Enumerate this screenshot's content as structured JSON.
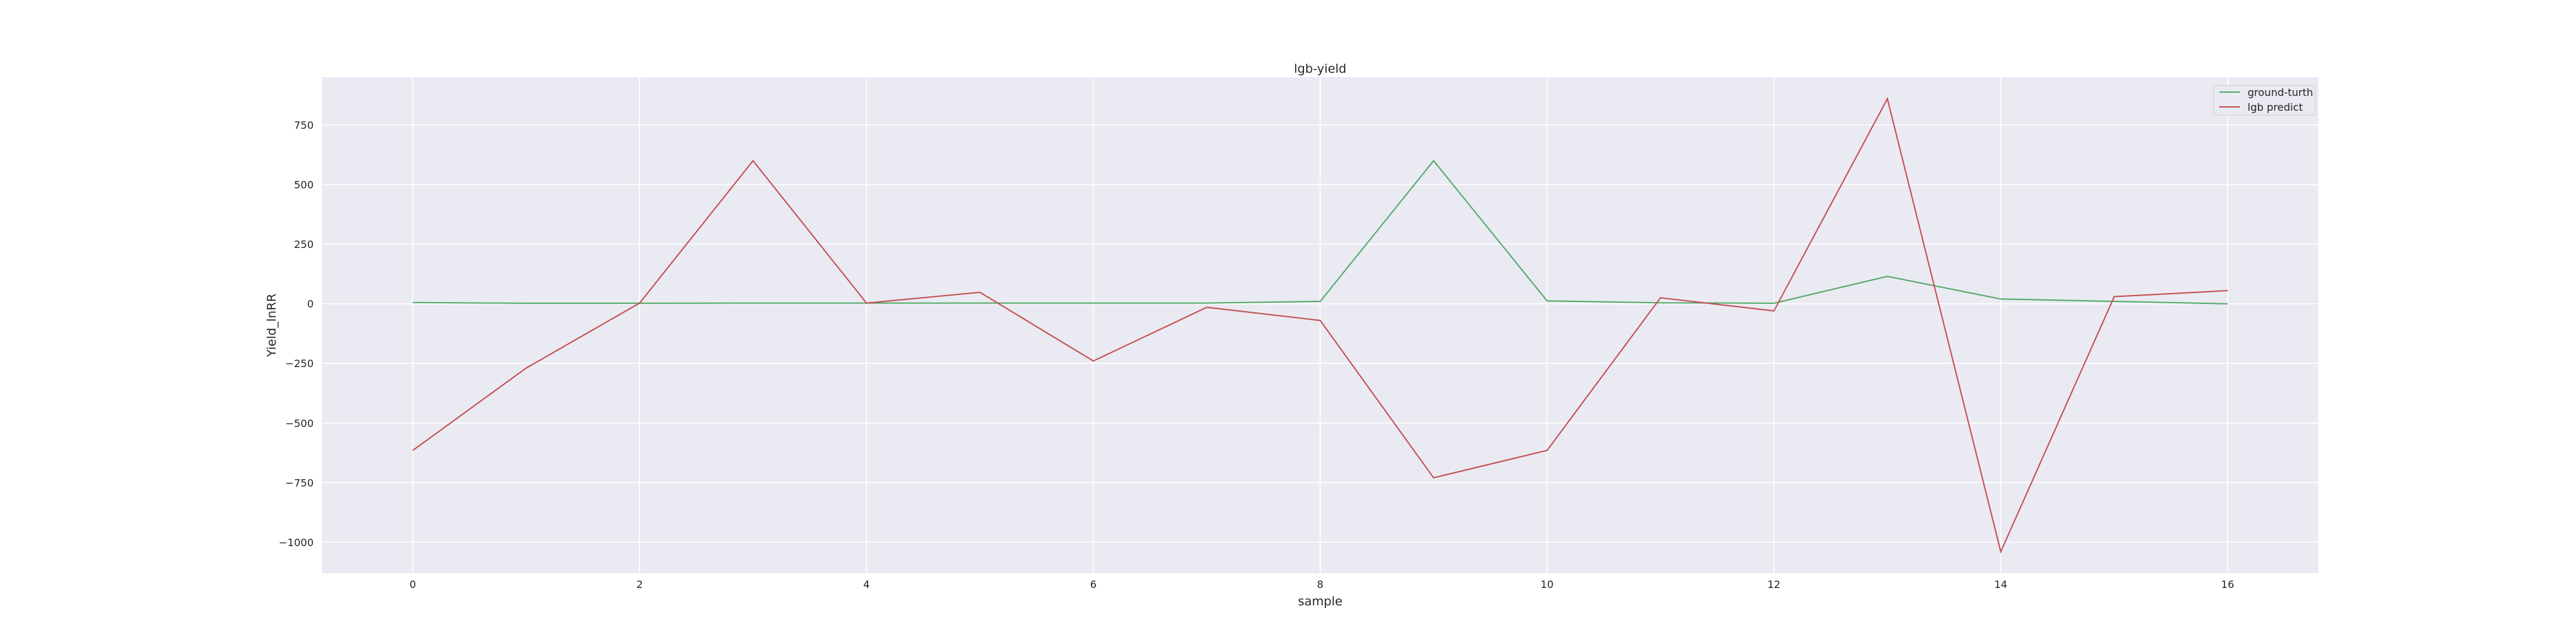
{
  "chart_data": {
    "type": "line",
    "title": "lgb-yield",
    "xlabel": "sample",
    "ylabel": "Yield_lnRR",
    "x": [
      0,
      1,
      2,
      3,
      4,
      5,
      6,
      7,
      8,
      9,
      10,
      11,
      12,
      13,
      14,
      15,
      16
    ],
    "xlim": [
      -0.8,
      16.8
    ],
    "ylim": [
      -1130,
      950
    ],
    "xticks": [
      0,
      2,
      4,
      6,
      8,
      10,
      12,
      14,
      16
    ],
    "yticks": [
      -1000,
      -750,
      -500,
      -250,
      0,
      250,
      500,
      750
    ],
    "ytick_labels": [
      "−1000",
      "−750",
      "−500",
      "−250",
      "0",
      "250",
      "500",
      "750"
    ],
    "grid": true,
    "legend_position": "top-right",
    "background": "#eaeaf2",
    "series": [
      {
        "name": "ground-turth",
        "color": "#55a868",
        "values": [
          5,
          2,
          2,
          3,
          3,
          3,
          3,
          3,
          10,
          600,
          12,
          4,
          2,
          115,
          20,
          10,
          0
        ]
      },
      {
        "name": "lgb predict",
        "color": "#c44e52",
        "values": [
          -615,
          -270,
          3,
          600,
          3,
          48,
          -240,
          -15,
          -70,
          -730,
          -615,
          25,
          -30,
          860,
          -1040,
          30,
          55
        ]
      }
    ]
  }
}
